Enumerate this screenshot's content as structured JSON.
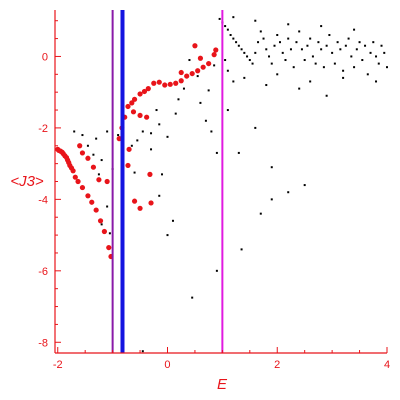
{
  "chart_data": {
    "type": "scatter",
    "title": "",
    "xlabel": "E",
    "ylabel": "<J3>",
    "xlim": [
      -2.05,
      4.0
    ],
    "ylim": [
      -8.3,
      1.3
    ],
    "x_ticks": [
      -2,
      0,
      2,
      4
    ],
    "y_ticks": [
      0,
      -2,
      -4,
      -6,
      -8
    ],
    "grid": false,
    "colors": {
      "axis": "#e8141a",
      "black_points": "#000000",
      "red_points": "#e8141a",
      "vline_magenta": "#e01ae0",
      "vline_purple": "#8a1aa8",
      "vline_blue": "#1414e0"
    },
    "vertical_lines": [
      {
        "x": -1.0,
        "color": "#8a1aa8"
      },
      {
        "x": -0.82,
        "color": "#1414e0"
      },
      {
        "x": 1.0,
        "color": "#e01ae0"
      }
    ],
    "red_points": [
      [
        -2.0,
        -2.6
      ],
      [
        -1.98,
        -2.63
      ],
      [
        -1.95,
        -2.65
      ],
      [
        -1.92,
        -2.68
      ],
      [
        -1.9,
        -2.72
      ],
      [
        -1.87,
        -2.78
      ],
      [
        -1.84,
        -2.83
      ],
      [
        -1.82,
        -2.9
      ],
      [
        -1.8,
        -2.97
      ],
      [
        -1.78,
        -3.05
      ],
      [
        -1.75,
        -3.12
      ],
      [
        -1.72,
        -3.2
      ],
      [
        -1.68,
        -3.38
      ],
      [
        -1.63,
        -3.5
      ],
      [
        -1.55,
        -3.67
      ],
      [
        -1.45,
        -3.9
      ],
      [
        -1.38,
        -4.08
      ],
      [
        -1.3,
        -4.3
      ],
      [
        -1.22,
        -4.6
      ],
      [
        -1.15,
        -4.9
      ],
      [
        -1.07,
        -5.35
      ],
      [
        -1.03,
        -5.6
      ],
      [
        -1.6,
        -2.5
      ],
      [
        -1.55,
        -2.7
      ],
      [
        -1.45,
        -2.85
      ],
      [
        -1.35,
        -3.1
      ],
      [
        -1.25,
        -3.45
      ],
      [
        -1.1,
        -3.5
      ],
      [
        -0.88,
        -2.3
      ],
      [
        -0.83,
        -2.0
      ],
      [
        -0.78,
        -1.7
      ],
      [
        -0.72,
        -1.4
      ],
      [
        -0.65,
        -1.3
      ],
      [
        -0.6,
        -1.2
      ],
      [
        -0.5,
        -1.05
      ],
      [
        -0.42,
        -0.98
      ],
      [
        -0.35,
        -0.9
      ],
      [
        -0.25,
        -0.75
      ],
      [
        -0.15,
        -0.72
      ],
      [
        -0.05,
        -0.8
      ],
      [
        0.05,
        -0.78
      ],
      [
        0.15,
        -0.75
      ],
      [
        0.25,
        -0.68
      ],
      [
        0.35,
        -0.55
      ],
      [
        0.45,
        -0.48
      ],
      [
        0.55,
        -0.4
      ],
      [
        0.65,
        -0.3
      ],
      [
        0.75,
        -0.2
      ],
      [
        0.85,
        0.05
      ],
      [
        0.88,
        0.18
      ],
      [
        0.25,
        -0.45
      ],
      [
        -0.5,
        -1.65
      ],
      [
        -0.38,
        -1.7
      ],
      [
        -0.62,
        -1.55
      ],
      [
        -0.7,
        -2.6
      ],
      [
        -0.72,
        -3.05
      ],
      [
        -0.6,
        -4.05
      ],
      [
        -0.5,
        -4.25
      ],
      [
        -0.3,
        -4.1
      ],
      [
        -0.32,
        -3.3
      ],
      [
        0.6,
        -0.05
      ],
      [
        0.5,
        0.3
      ]
    ],
    "black_points": [
      [
        0.95,
        1.05
      ],
      [
        1.0,
        0.95
      ],
      [
        1.05,
        0.85
      ],
      [
        1.1,
        0.75
      ],
      [
        1.15,
        0.6
      ],
      [
        1.2,
        0.5
      ],
      [
        1.25,
        0.4
      ],
      [
        1.3,
        0.3
      ],
      [
        1.35,
        0.2
      ],
      [
        1.4,
        0.1
      ],
      [
        1.45,
        0.0
      ],
      [
        1.5,
        -0.1
      ],
      [
        1.55,
        -0.2
      ],
      [
        1.6,
        0.1
      ],
      [
        1.65,
        0.4
      ],
      [
        1.7,
        0.7
      ],
      [
        1.75,
        0.5
      ],
      [
        1.8,
        0.2
      ],
      [
        1.85,
        0.0
      ],
      [
        1.9,
        -0.2
      ],
      [
        1.95,
        0.3
      ],
      [
        2.0,
        0.6
      ],
      [
        2.05,
        0.4
      ],
      [
        2.1,
        0.1
      ],
      [
        2.15,
        -0.1
      ],
      [
        2.2,
        0.5
      ],
      [
        2.25,
        0.2
      ],
      [
        2.3,
        -0.3
      ],
      [
        2.35,
        0.4
      ],
      [
        2.4,
        0.7
      ],
      [
        2.45,
        0.2
      ],
      [
        2.5,
        -0.1
      ],
      [
        2.55,
        0.3
      ],
      [
        2.6,
        0.5
      ],
      [
        2.65,
        0.0
      ],
      [
        2.7,
        -0.2
      ],
      [
        2.75,
        0.4
      ],
      [
        2.8,
        0.2
      ],
      [
        2.85,
        -0.3
      ],
      [
        2.9,
        0.3
      ],
      [
        2.95,
        0.6
      ],
      [
        3.0,
        0.1
      ],
      [
        3.05,
        -0.2
      ],
      [
        3.1,
        0.4
      ],
      [
        3.15,
        0.2
      ],
      [
        3.2,
        -0.4
      ],
      [
        3.25,
        0.3
      ],
      [
        3.3,
        0.5
      ],
      [
        3.35,
        0.0
      ],
      [
        3.4,
        -0.3
      ],
      [
        3.45,
        0.2
      ],
      [
        3.5,
        0.4
      ],
      [
        3.55,
        -0.1
      ],
      [
        3.6,
        0.3
      ],
      [
        3.65,
        -0.5
      ],
      [
        3.7,
        0.1
      ],
      [
        3.75,
        0.4
      ],
      [
        3.8,
        0.0
      ],
      [
        3.85,
        -0.2
      ],
      [
        3.9,
        0.3
      ],
      [
        3.95,
        0.1
      ],
      [
        4.0,
        -0.3
      ],
      [
        1.2,
        1.1
      ],
      [
        1.6,
        1.0
      ],
      [
        2.2,
        0.9
      ],
      [
        2.8,
        0.85
      ],
      [
        3.4,
        0.75
      ],
      [
        2.0,
        -0.5
      ],
      [
        2.6,
        -0.7
      ],
      [
        3.2,
        -0.6
      ],
      [
        3.8,
        -0.7
      ],
      [
        1.8,
        -0.8
      ],
      [
        2.9,
        -1.1
      ],
      [
        2.4,
        -0.9
      ],
      [
        1.4,
        -0.6
      ],
      [
        1.1,
        -0.4
      ],
      [
        0.4,
        -0.1
      ],
      [
        0.45,
        -0.5
      ],
      [
        0.3,
        -0.9
      ],
      [
        0.6,
        -1.3
      ],
      [
        0.7,
        -1.8
      ],
      [
        0.8,
        -2.1
      ],
      [
        0.9,
        -2.7
      ],
      [
        1.3,
        -2.7
      ],
      [
        1.6,
        -2.0
      ],
      [
        1.9,
        -3.1
      ],
      [
        1.7,
        -4.4
      ],
      [
        1.9,
        -4.0
      ],
      [
        2.2,
        -3.8
      ],
      [
        2.5,
        -3.6
      ],
      [
        1.35,
        -5.4
      ],
      [
        0.9,
        -6.0
      ],
      [
        0.45,
        -6.75
      ],
      [
        -0.45,
        -8.25
      ],
      [
        -0.15,
        -3.9
      ],
      [
        -0.1,
        -3.3
      ],
      [
        0.0,
        -5.0
      ],
      [
        0.1,
        -4.6
      ],
      [
        -0.3,
        -2.6
      ],
      [
        -0.45,
        -2.1
      ],
      [
        -0.55,
        -2.35
      ],
      [
        -0.65,
        -2.5
      ],
      [
        -0.9,
        -2.2
      ],
      [
        -1.1,
        -2.1
      ],
      [
        -1.3,
        -2.3
      ],
      [
        -1.45,
        -2.5
      ],
      [
        -1.55,
        -2.2
      ],
      [
        -1.7,
        -2.1
      ],
      [
        -1.35,
        -2.75
      ],
      [
        -1.2,
        -2.9
      ],
      [
        -1.25,
        -3.3
      ],
      [
        -1.0,
        -3.15
      ],
      [
        -1.1,
        -4.2
      ],
      [
        -1.2,
        -4.7
      ],
      [
        -1.05,
        -4.95
      ],
      [
        -0.2,
        -1.5
      ],
      [
        -0.15,
        -1.9
      ],
      [
        0.2,
        -1.2
      ],
      [
        0.55,
        -0.55
      ],
      [
        0.75,
        -0.95
      ],
      [
        0.85,
        -0.25
      ],
      [
        1.05,
        -0.1
      ],
      [
        1.2,
        -0.7
      ],
      [
        1.1,
        -1.5
      ],
      [
        -0.3,
        -2.15
      ],
      [
        0.0,
        -2.25
      ],
      [
        -0.6,
        -3.25
      ],
      [
        0.15,
        -1.6
      ]
    ]
  }
}
